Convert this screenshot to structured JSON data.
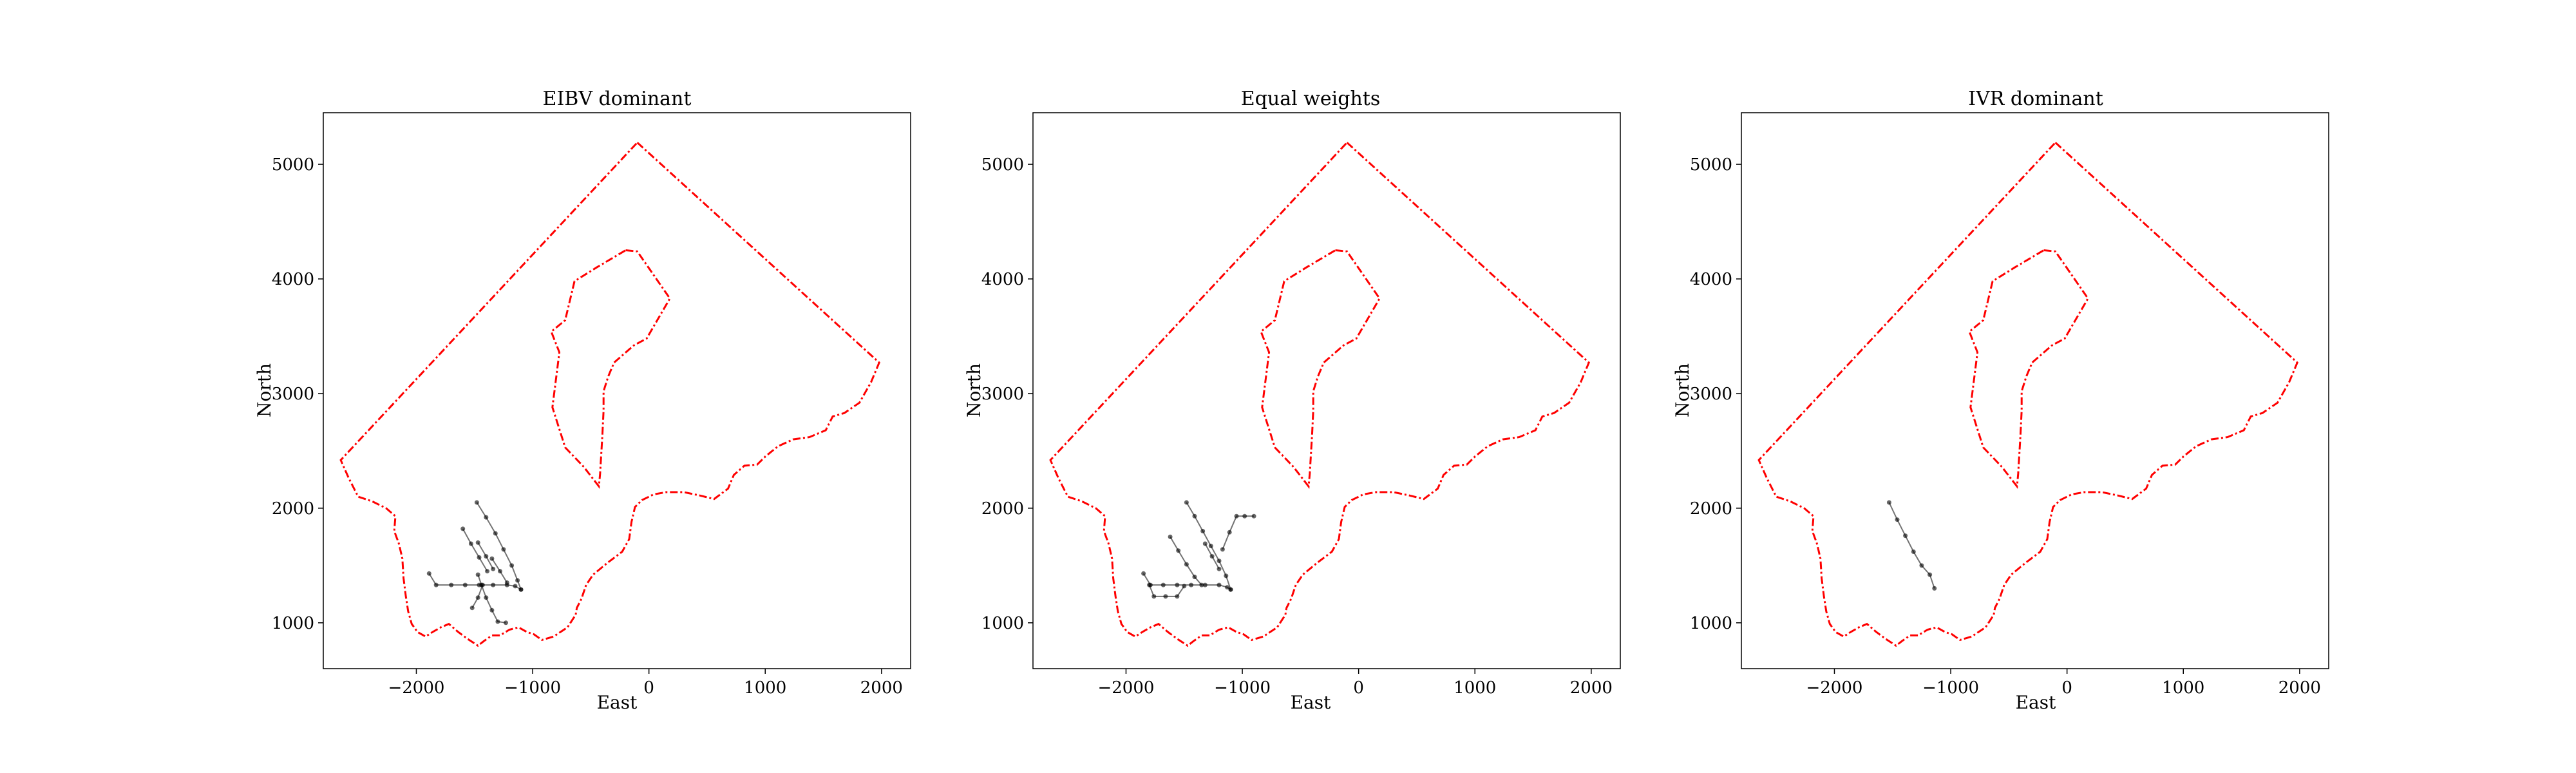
{
  "chart_data": [
    {
      "type": "line",
      "title": "EIBV dominant",
      "xlabel": "East",
      "ylabel": "North",
      "xlim": [
        -2800,
        2250
      ],
      "ylim": [
        600,
        5450
      ],
      "xticks": [
        -2000,
        -1000,
        0,
        1000,
        2000
      ],
      "xtick_labels": [
        "−2000",
        "−1000",
        "0",
        "1000",
        "2000"
      ],
      "yticks": [
        1000,
        2000,
        3000,
        4000,
        5000
      ],
      "ytick_labels": [
        "1000",
        "2000",
        "3000",
        "4000",
        "5000"
      ],
      "grid": false,
      "boundary_color": "#ff0000",
      "path_color": "#000000",
      "trajectory_segments": [
        [
          [
            -1480,
            2050
          ],
          [
            -1400,
            1920
          ],
          [
            -1320,
            1780
          ],
          [
            -1250,
            1640
          ],
          [
            -1180,
            1500
          ],
          [
            -1130,
            1370
          ],
          [
            -1100,
            1290
          ]
        ],
        [
          [
            -1600,
            1820
          ],
          [
            -1530,
            1690
          ],
          [
            -1460,
            1570
          ],
          [
            -1390,
            1450
          ]
        ],
        [
          [
            -1470,
            1700
          ],
          [
            -1400,
            1580
          ],
          [
            -1340,
            1470
          ]
        ],
        [
          [
            -1350,
            1560
          ],
          [
            -1280,
            1450
          ],
          [
            -1220,
            1350
          ]
        ],
        [
          [
            -1890,
            1430
          ],
          [
            -1830,
            1330
          ],
          [
            -1700,
            1330
          ],
          [
            -1580,
            1330
          ],
          [
            -1460,
            1330
          ],
          [
            -1340,
            1330
          ],
          [
            -1220,
            1330
          ],
          [
            -1150,
            1320
          ],
          [
            -1100,
            1290
          ]
        ],
        [
          [
            -1470,
            1420
          ],
          [
            -1440,
            1330
          ],
          [
            -1400,
            1220
          ],
          [
            -1350,
            1110
          ],
          [
            -1300,
            1010
          ],
          [
            -1230,
            1000
          ]
        ],
        [
          [
            -1520,
            1130
          ],
          [
            -1470,
            1220
          ],
          [
            -1430,
            1330
          ]
        ]
      ]
    },
    {
      "type": "line",
      "title": "Equal weights",
      "xlabel": "East",
      "ylabel": "North",
      "xlim": [
        -2800,
        2250
      ],
      "ylim": [
        600,
        5450
      ],
      "xticks": [
        -2000,
        -1000,
        0,
        1000,
        2000
      ],
      "xtick_labels": [
        "−2000",
        "−1000",
        "0",
        "1000",
        "2000"
      ],
      "yticks": [
        1000,
        2000,
        3000,
        4000,
        5000
      ],
      "ytick_labels": [
        "1000",
        "2000",
        "3000",
        "4000",
        "5000"
      ],
      "grid": false,
      "boundary_color": "#ff0000",
      "path_color": "#000000",
      "trajectory_segments": [
        [
          [
            -1480,
            2050
          ],
          [
            -1410,
            1930
          ],
          [
            -1340,
            1800
          ],
          [
            -1270,
            1670
          ],
          [
            -1200,
            1540
          ],
          [
            -1140,
            1410
          ],
          [
            -1100,
            1290
          ]
        ],
        [
          [
            -1620,
            1750
          ],
          [
            -1550,
            1630
          ],
          [
            -1480,
            1510
          ],
          [
            -1410,
            1400
          ],
          [
            -1350,
            1330
          ]
        ],
        [
          [
            -1320,
            1690
          ],
          [
            -1260,
            1580
          ],
          [
            -1200,
            1470
          ]
        ],
        [
          [
            -1850,
            1430
          ],
          [
            -1790,
            1330
          ],
          [
            -1680,
            1330
          ],
          [
            -1560,
            1330
          ],
          [
            -1440,
            1330
          ],
          [
            -1320,
            1330
          ],
          [
            -1200,
            1330
          ],
          [
            -1130,
            1310
          ],
          [
            -1100,
            1290
          ]
        ],
        [
          [
            -1800,
            1330
          ],
          [
            -1760,
            1230
          ],
          [
            -1660,
            1230
          ],
          [
            -1560,
            1230
          ],
          [
            -1500,
            1320
          ]
        ],
        [
          [
            -1170,
            1640
          ],
          [
            -1110,
            1790
          ],
          [
            -1050,
            1930
          ],
          [
            -980,
            1930
          ],
          [
            -900,
            1930
          ]
        ]
      ]
    },
    {
      "type": "line",
      "title": "IVR dominant",
      "xlabel": "East",
      "ylabel": "North",
      "xlim": [
        -2800,
        2250
      ],
      "ylim": [
        600,
        5450
      ],
      "xticks": [
        -2000,
        -1000,
        0,
        1000,
        2000
      ],
      "xtick_labels": [
        "−2000",
        "−1000",
        "0",
        "1000",
        "2000"
      ],
      "yticks": [
        1000,
        2000,
        3000,
        4000,
        5000
      ],
      "ytick_labels": [
        "1000",
        "2000",
        "3000",
        "4000",
        "5000"
      ],
      "grid": false,
      "boundary_color": "#ff0000",
      "path_color": "#000000",
      "trajectory_segments": [
        [
          [
            -1530,
            2050
          ],
          [
            -1460,
            1900
          ],
          [
            -1390,
            1760
          ],
          [
            -1320,
            1620
          ],
          [
            -1250,
            1500
          ],
          [
            -1180,
            1420
          ],
          [
            -1140,
            1300
          ]
        ]
      ]
    }
  ],
  "shared_polygons": {
    "outer_boundary": [
      [
        -100,
        5190
      ],
      [
        1980,
        3270
      ],
      [
        1910,
        3100
      ],
      [
        1810,
        2920
      ],
      [
        1680,
        2830
      ],
      [
        1580,
        2800
      ],
      [
        1520,
        2680
      ],
      [
        1380,
        2620
      ],
      [
        1240,
        2600
      ],
      [
        1110,
        2540
      ],
      [
        1000,
        2450
      ],
      [
        930,
        2380
      ],
      [
        820,
        2370
      ],
      [
        730,
        2290
      ],
      [
        680,
        2170
      ],
      [
        560,
        2080
      ],
      [
        440,
        2110
      ],
      [
        300,
        2140
      ],
      [
        150,
        2140
      ],
      [
        40,
        2120
      ],
      [
        -60,
        2070
      ],
      [
        -120,
        2010
      ],
      [
        -150,
        1880
      ],
      [
        -170,
        1730
      ],
      [
        -230,
        1620
      ],
      [
        -360,
        1520
      ],
      [
        -480,
        1420
      ],
      [
        -540,
        1330
      ],
      [
        -580,
        1210
      ],
      [
        -620,
        1130
      ],
      [
        -630,
        1070
      ],
      [
        -700,
        960
      ],
      [
        -820,
        880
      ],
      [
        -920,
        850
      ],
      [
        -990,
        900
      ],
      [
        -1050,
        920
      ],
      [
        -1120,
        960
      ],
      [
        -1200,
        940
      ],
      [
        -1280,
        890
      ],
      [
        -1350,
        890
      ],
      [
        -1420,
        840
      ],
      [
        -1470,
        800
      ],
      [
        -1560,
        860
      ],
      [
        -1640,
        920
      ],
      [
        -1720,
        990
      ],
      [
        -1790,
        960
      ],
      [
        -1860,
        920
      ],
      [
        -1920,
        880
      ],
      [
        -1990,
        920
      ],
      [
        -2040,
        990
      ],
      [
        -2070,
        1100
      ],
      [
        -2090,
        1230
      ],
      [
        -2110,
        1390
      ],
      [
        -2120,
        1560
      ],
      [
        -2150,
        1690
      ],
      [
        -2190,
        1800
      ],
      [
        -2180,
        1930
      ],
      [
        -2260,
        2000
      ],
      [
        -2380,
        2060
      ],
      [
        -2500,
        2100
      ],
      [
        -2580,
        2260
      ],
      [
        -2650,
        2420
      ],
      [
        -100,
        5190
      ]
    ],
    "inner_island": [
      [
        -200,
        4250
      ],
      [
        -100,
        4240
      ],
      [
        180,
        3830
      ],
      [
        -20,
        3480
      ],
      [
        -130,
        3420
      ],
      [
        -300,
        3270
      ],
      [
        -350,
        3150
      ],
      [
        -390,
        3020
      ],
      [
        -390,
        2850
      ],
      [
        -400,
        2640
      ],
      [
        -410,
        2470
      ],
      [
        -420,
        2300
      ],
      [
        -430,
        2190
      ],
      [
        -560,
        2360
      ],
      [
        -720,
        2530
      ],
      [
        -830,
        2880
      ],
      [
        -770,
        3360
      ],
      [
        -840,
        3540
      ],
      [
        -720,
        3640
      ],
      [
        -640,
        3980
      ],
      [
        -450,
        4100
      ],
      [
        -200,
        4250
      ]
    ]
  }
}
